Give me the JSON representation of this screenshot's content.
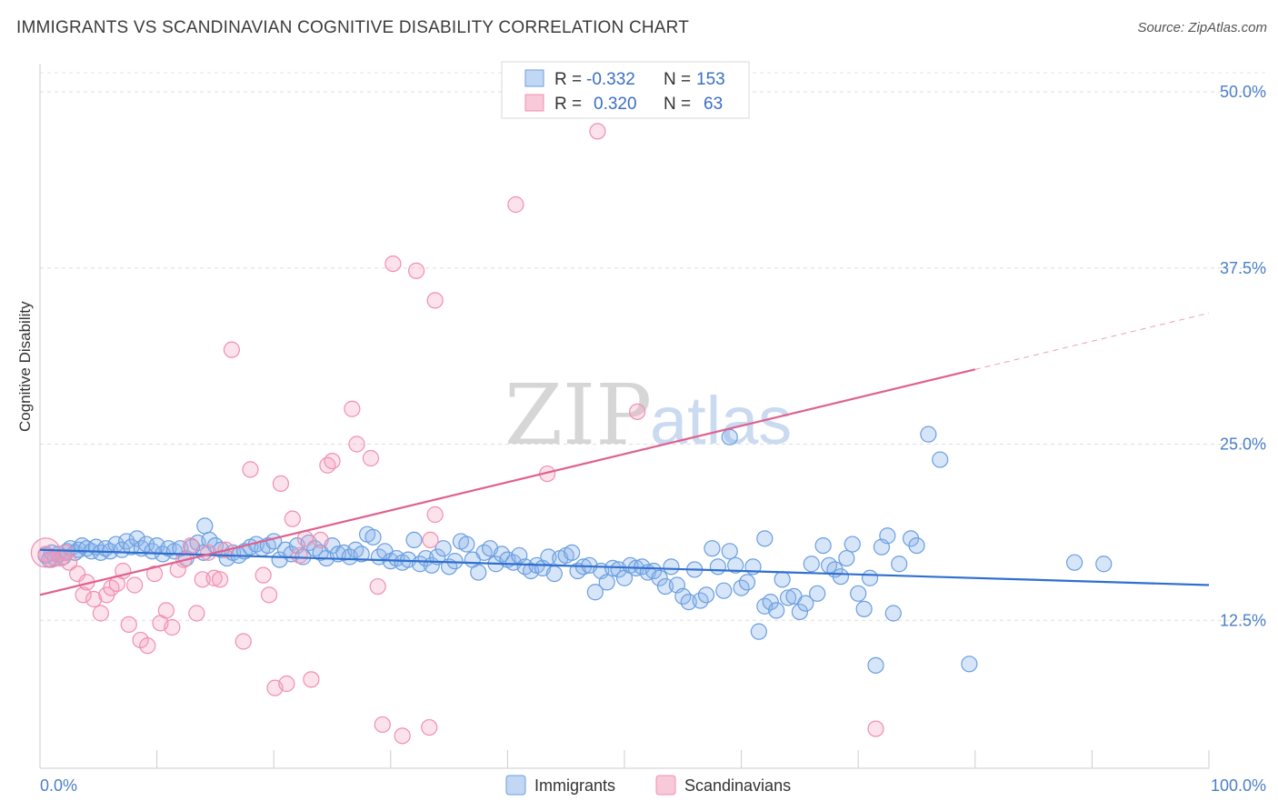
{
  "title": "IMMIGRANTS VS SCANDINAVIAN COGNITIVE DISABILITY CORRELATION CHART",
  "source": "Source: ZipAtlas.com",
  "watermark": {
    "part1": "ZIP",
    "part2": "atlas"
  },
  "legend_stats": [
    {
      "r_label": "R =",
      "r_value": "-0.332",
      "n_label": "N =",
      "n_value": "153"
    },
    {
      "r_label": "R =",
      "r_value": "0.320",
      "n_label": "N =",
      "n_value": "63"
    }
  ],
  "chart_data": {
    "type": "scatter",
    "ylabel": "Cognitive Disability",
    "xlim": [
      0,
      100
    ],
    "ylim": [
      2,
      52
    ],
    "x_tick_labels": [
      "0.0%",
      "100.0%"
    ],
    "y_ticks": [
      {
        "value": 12.5,
        "label": "12.5%"
      },
      {
        "value": 25.0,
        "label": "25.0%"
      },
      {
        "value": 37.5,
        "label": "37.5%"
      },
      {
        "value": 50.0,
        "label": "50.0%"
      }
    ],
    "grid": true,
    "legend_position": "top-center",
    "series": [
      {
        "name": "Immigrants",
        "color": "#6a9fe0",
        "line_color": "#2f6fce",
        "trend": {
          "x0": 0,
          "y0": 17.5,
          "x1": 100,
          "y1": 15.0
        },
        "points": [
          [
            0.5,
            17.1
          ],
          [
            0.8,
            16.8
          ],
          [
            1.0,
            17.3
          ],
          [
            1.3,
            16.9
          ],
          [
            1.6,
            17.2
          ],
          [
            2.0,
            17.0
          ],
          [
            2.3,
            17.4
          ],
          [
            2.6,
            17.6
          ],
          [
            3.0,
            17.3
          ],
          [
            3.3,
            17.5
          ],
          [
            3.6,
            17.8
          ],
          [
            4.0,
            17.6
          ],
          [
            4.4,
            17.4
          ],
          [
            4.8,
            17.7
          ],
          [
            5.2,
            17.3
          ],
          [
            5.6,
            17.6
          ],
          [
            6.0,
            17.4
          ],
          [
            6.5,
            17.9
          ],
          [
            7.0,
            17.5
          ],
          [
            7.4,
            18.1
          ],
          [
            7.8,
            17.7
          ],
          [
            8.3,
            18.3
          ],
          [
            8.7,
            17.6
          ],
          [
            9.1,
            17.9
          ],
          [
            9.6,
            17.4
          ],
          [
            10.0,
            17.8
          ],
          [
            10.5,
            17.2
          ],
          [
            11.0,
            17.6
          ],
          [
            11.5,
            17.4
          ],
          [
            12.0,
            17.6
          ],
          [
            12.5,
            16.9
          ],
          [
            13.0,
            17.7
          ],
          [
            13.5,
            18.0
          ],
          [
            14.0,
            17.3
          ],
          [
            14.5,
            18.2
          ],
          [
            15.0,
            17.8
          ],
          [
            14.1,
            19.2
          ],
          [
            15.5,
            17.5
          ],
          [
            16.0,
            16.9
          ],
          [
            16.5,
            17.3
          ],
          [
            17.0,
            17.1
          ],
          [
            17.5,
            17.4
          ],
          [
            18.0,
            17.7
          ],
          [
            18.5,
            17.9
          ],
          [
            19.0,
            17.6
          ],
          [
            19.5,
            17.8
          ],
          [
            20.0,
            18.1
          ],
          [
            20.5,
            16.8
          ],
          [
            21.0,
            17.5
          ],
          [
            21.5,
            17.2
          ],
          [
            22.0,
            17.8
          ],
          [
            22.5,
            17.0
          ],
          [
            23.0,
            18.0
          ],
          [
            23.5,
            17.6
          ],
          [
            24.0,
            17.3
          ],
          [
            24.5,
            16.9
          ],
          [
            25.0,
            17.8
          ],
          [
            25.5,
            17.2
          ],
          [
            26.0,
            17.3
          ],
          [
            26.5,
            17.0
          ],
          [
            27.0,
            17.5
          ],
          [
            27.5,
            17.2
          ],
          [
            28.0,
            18.6
          ],
          [
            28.5,
            18.4
          ],
          [
            29.0,
            17.0
          ],
          [
            29.5,
            17.4
          ],
          [
            30.0,
            16.7
          ],
          [
            30.5,
            16.9
          ],
          [
            31.0,
            16.6
          ],
          [
            31.5,
            16.8
          ],
          [
            32.0,
            18.2
          ],
          [
            32.5,
            16.5
          ],
          [
            33.0,
            16.9
          ],
          [
            33.5,
            16.4
          ],
          [
            34.0,
            17.0
          ],
          [
            34.5,
            17.6
          ],
          [
            35.0,
            16.3
          ],
          [
            35.5,
            16.7
          ],
          [
            36.0,
            18.1
          ],
          [
            36.5,
            17.9
          ],
          [
            37.0,
            16.8
          ],
          [
            37.5,
            15.9
          ],
          [
            38.0,
            17.3
          ],
          [
            38.5,
            17.6
          ],
          [
            39.0,
            16.5
          ],
          [
            39.5,
            17.2
          ],
          [
            40.0,
            16.8
          ],
          [
            40.5,
            16.6
          ],
          [
            41.0,
            17.1
          ],
          [
            41.5,
            16.3
          ],
          [
            42.0,
            16.0
          ],
          [
            42.5,
            16.4
          ],
          [
            43.0,
            16.2
          ],
          [
            43.5,
            17.0
          ],
          [
            44.0,
            15.8
          ],
          [
            44.5,
            16.9
          ],
          [
            45.0,
            17.1
          ],
          [
            45.5,
            17.3
          ],
          [
            46.0,
            16.0
          ],
          [
            46.5,
            16.3
          ],
          [
            47.0,
            16.4
          ],
          [
            47.5,
            14.5
          ],
          [
            48.0,
            16.0
          ],
          [
            48.5,
            15.2
          ],
          [
            49.0,
            16.2
          ],
          [
            49.5,
            16.1
          ],
          [
            50.0,
            15.5
          ],
          [
            50.5,
            16.4
          ],
          [
            51.0,
            16.2
          ],
          [
            51.5,
            16.3
          ],
          [
            52.0,
            15.9
          ],
          [
            52.5,
            16.0
          ],
          [
            53.0,
            15.5
          ],
          [
            53.5,
            14.9
          ],
          [
            54.0,
            16.3
          ],
          [
            54.5,
            15.0
          ],
          [
            55.0,
            14.2
          ],
          [
            55.5,
            13.8
          ],
          [
            56.0,
            16.1
          ],
          [
            56.5,
            13.9
          ],
          [
            57.0,
            14.3
          ],
          [
            57.5,
            17.6
          ],
          [
            58.0,
            16.3
          ],
          [
            58.5,
            14.6
          ],
          [
            59.0,
            17.4
          ],
          [
            59.5,
            16.4
          ],
          [
            60.0,
            14.8
          ],
          [
            60.5,
            15.2
          ],
          [
            61.0,
            16.3
          ],
          [
            61.5,
            11.7
          ],
          [
            62.0,
            13.5
          ],
          [
            62.5,
            13.8
          ],
          [
            63.0,
            13.2
          ],
          [
            63.5,
            15.4
          ],
          [
            64.0,
            14.1
          ],
          [
            64.5,
            14.2
          ],
          [
            65.0,
            13.1
          ],
          [
            65.5,
            13.7
          ],
          [
            66.0,
            16.5
          ],
          [
            66.5,
            14.4
          ],
          [
            67.0,
            17.8
          ],
          [
            67.5,
            16.4
          ],
          [
            68.0,
            16.1
          ],
          [
            68.5,
            15.6
          ],
          [
            69.0,
            16.9
          ],
          [
            69.5,
            17.9
          ],
          [
            70.0,
            14.4
          ],
          [
            70.5,
            13.3
          ],
          [
            71.0,
            15.5
          ],
          [
            71.5,
            9.3
          ],
          [
            72.0,
            17.7
          ],
          [
            72.5,
            18.5
          ],
          [
            73.0,
            13.0
          ],
          [
            73.5,
            16.5
          ],
          [
            74.5,
            18.3
          ],
          [
            75.0,
            17.8
          ],
          [
            76.0,
            25.7
          ],
          [
            77.0,
            23.9
          ],
          [
            79.5,
            9.4
          ],
          [
            88.5,
            16.6
          ],
          [
            91.0,
            16.5
          ],
          [
            62.0,
            18.3
          ],
          [
            59.0,
            25.5
          ]
        ]
      },
      {
        "name": "Scandinavians",
        "color": "#f08fb0",
        "line_color": "#e0608e",
        "trend": {
          "x0": 0,
          "y0": 14.3,
          "x1": 80,
          "y1": 30.3
        },
        "trend_dashed": {
          "x0": 80,
          "y0": 30.3,
          "x1": 100,
          "y1": 34.3
        },
        "points": [
          [
            0.5,
            17.2
          ],
          [
            1.0,
            16.8
          ],
          [
            1.8,
            16.9
          ],
          [
            2.5,
            16.6
          ],
          [
            3.2,
            15.8
          ],
          [
            3.7,
            14.3
          ],
          [
            4.0,
            15.2
          ],
          [
            4.6,
            14.0
          ],
          [
            5.2,
            13.0
          ],
          [
            5.7,
            14.3
          ],
          [
            6.1,
            14.8
          ],
          [
            6.6,
            15.1
          ],
          [
            7.1,
            16.0
          ],
          [
            7.6,
            12.2
          ],
          [
            8.1,
            15.0
          ],
          [
            8.6,
            11.1
          ],
          [
            9.2,
            10.7
          ],
          [
            9.8,
            15.8
          ],
          [
            10.3,
            12.3
          ],
          [
            10.8,
            13.2
          ],
          [
            11.3,
            12.0
          ],
          [
            11.8,
            16.1
          ],
          [
            12.3,
            16.8
          ],
          [
            12.9,
            17.8
          ],
          [
            13.4,
            13.0
          ],
          [
            13.9,
            15.4
          ],
          [
            14.4,
            17.3
          ],
          [
            14.9,
            15.5
          ],
          [
            15.4,
            15.4
          ],
          [
            15.9,
            17.5
          ],
          [
            16.4,
            31.7
          ],
          [
            17.4,
            11.0
          ],
          [
            18.0,
            23.2
          ],
          [
            19.1,
            15.7
          ],
          [
            19.6,
            14.3
          ],
          [
            20.1,
            7.7
          ],
          [
            20.6,
            22.2
          ],
          [
            21.1,
            8.0
          ],
          [
            21.6,
            19.7
          ],
          [
            22.2,
            17.1
          ],
          [
            22.7,
            18.3
          ],
          [
            23.2,
            8.3
          ],
          [
            24.0,
            18.2
          ],
          [
            24.6,
            23.5
          ],
          [
            25.0,
            23.8
          ],
          [
            26.7,
            27.5
          ],
          [
            27.1,
            25.0
          ],
          [
            28.3,
            24.0
          ],
          [
            28.9,
            14.9
          ],
          [
            29.3,
            5.1
          ],
          [
            30.2,
            37.8
          ],
          [
            31.0,
            4.3
          ],
          [
            32.2,
            37.3
          ],
          [
            33.3,
            4.9
          ],
          [
            33.8,
            35.2
          ],
          [
            33.8,
            20.0
          ],
          [
            33.4,
            18.2
          ],
          [
            40.7,
            42.0
          ],
          [
            43.4,
            22.9
          ],
          [
            47.7,
            47.2
          ],
          [
            51.1,
            27.3
          ],
          [
            71.5,
            4.8
          ],
          [
            2.2,
            17.3
          ]
        ]
      }
    ]
  },
  "bottom_legend": [
    {
      "label": "Immigrants"
    },
    {
      "label": "Scandinavians"
    }
  ]
}
